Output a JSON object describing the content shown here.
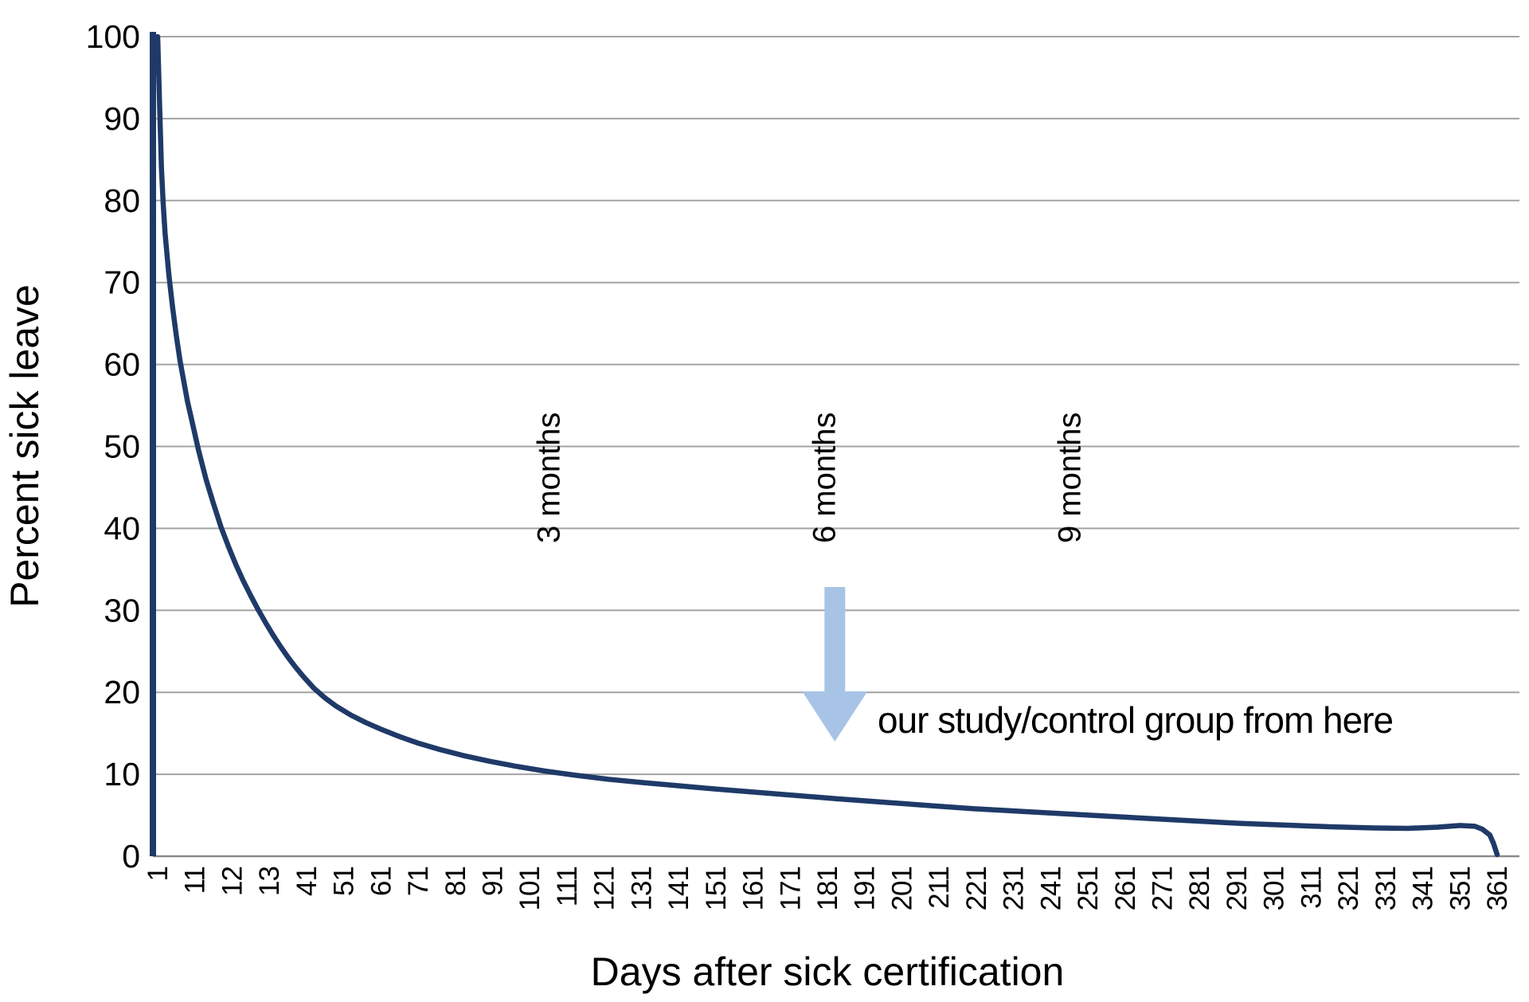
{
  "colors": {
    "background": "#ffffff",
    "curve": "#1f3a68",
    "gridline": "#a3a3a3",
    "axis_line": "#8a8a8a",
    "arrow_fill": "#a7c4e6",
    "text": "#000000"
  },
  "chart_data": {
    "type": "line",
    "title": "",
    "xlabel": "Days after sick certification",
    "ylabel": "Percent sick leave",
    "xlim": [
      1,
      361
    ],
    "ylim": [
      0,
      100
    ],
    "grid": "horizontal",
    "legend": "none",
    "y_ticks": [
      0,
      10,
      20,
      30,
      40,
      50,
      60,
      70,
      80,
      90,
      100
    ],
    "x_tick_labels": [
      "1",
      "11",
      "12",
      "13",
      "41",
      "51",
      "61",
      "71",
      "81",
      "91",
      "101",
      "111",
      "121",
      "131",
      "141",
      "151",
      "161",
      "171",
      "181",
      "191",
      "201",
      "211",
      "221",
      "231",
      "241",
      "251",
      "261",
      "271",
      "281",
      "291",
      "301",
      "311",
      "321",
      "331",
      "341",
      "351",
      "361"
    ],
    "series": [
      {
        "name": "Percent sick leave",
        "points": [
          [
            1,
            100
          ],
          [
            1.5,
            92
          ],
          [
            2,
            84
          ],
          [
            2.5,
            79.5
          ],
          [
            3,
            76
          ],
          [
            4,
            71
          ],
          [
            5,
            67
          ],
          [
            6,
            63.5
          ],
          [
            7,
            60.5
          ],
          [
            8,
            58
          ],
          [
            9,
            55.5
          ],
          [
            10,
            53.5
          ],
          [
            12,
            49.5
          ],
          [
            14,
            46
          ],
          [
            16,
            43
          ],
          [
            18,
            40.2
          ],
          [
            20,
            37.8
          ],
          [
            22,
            35.6
          ],
          [
            24,
            33.6
          ],
          [
            26,
            31.8
          ],
          [
            28,
            30.1
          ],
          [
            30,
            28.5
          ],
          [
            32,
            27
          ],
          [
            34,
            25.6
          ],
          [
            36,
            24.3
          ],
          [
            38,
            23.1
          ],
          [
            40,
            22
          ],
          [
            43,
            20.5
          ],
          [
            46,
            19.3
          ],
          [
            49,
            18.3
          ],
          [
            53,
            17.2
          ],
          [
            57,
            16.3
          ],
          [
            61,
            15.5
          ],
          [
            66,
            14.6
          ],
          [
            71,
            13.8
          ],
          [
            77,
            13
          ],
          [
            83,
            12.3
          ],
          [
            90,
            11.6
          ],
          [
            97,
            11
          ],
          [
            105,
            10.4
          ],
          [
            113,
            9.9
          ],
          [
            122,
            9.4
          ],
          [
            131,
            9
          ],
          [
            141,
            8.6
          ],
          [
            151,
            8.2
          ],
          [
            162,
            7.8
          ],
          [
            173,
            7.4
          ],
          [
            184,
            7
          ],
          [
            196,
            6.6
          ],
          [
            208,
            6.2
          ],
          [
            220,
            5.8
          ],
          [
            232,
            5.5
          ],
          [
            244,
            5.2
          ],
          [
            256,
            4.9
          ],
          [
            268,
            4.6
          ],
          [
            280,
            4.3
          ],
          [
            292,
            4
          ],
          [
            304,
            3.8
          ],
          [
            316,
            3.6
          ],
          [
            328,
            3.45
          ],
          [
            337,
            3.4
          ],
          [
            345,
            3.55
          ],
          [
            351,
            3.75
          ],
          [
            355,
            3.65
          ],
          [
            357,
            3.3
          ],
          [
            359,
            2.6
          ],
          [
            360,
            1.6
          ],
          [
            361,
            0.2
          ]
        ]
      }
    ],
    "annotations": {
      "month_markers": [
        {
          "label": "3 months",
          "day": 106
        },
        {
          "label": "6 months",
          "day": 180
        },
        {
          "label": "9 months",
          "day": 246
        }
      ],
      "arrow": {
        "day": 183,
        "label": "our study/control group from here"
      }
    }
  }
}
